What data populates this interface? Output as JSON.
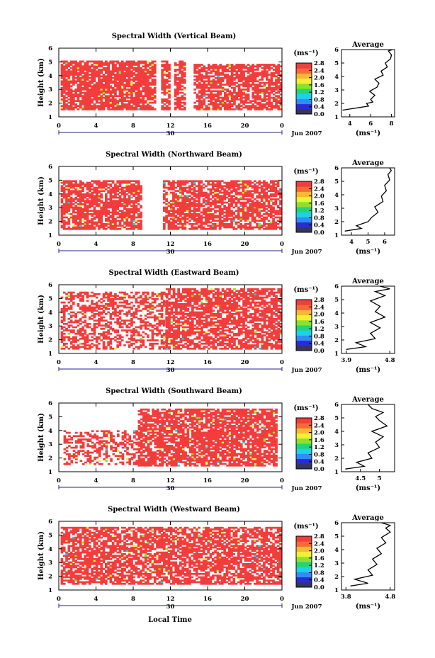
{
  "figure": {
    "xlabel": "Local Time",
    "date_label": "Jun 2007",
    "day_label": "30",
    "unit_label": "(ms⁻¹)",
    "avg_title": "Average",
    "colors": {
      "bar": [
        "#36365a",
        "#2b2bd6",
        "#2f8df6",
        "#1fd1e8",
        "#22d47a",
        "#8ce22a",
        "#f0f036",
        "#f7b834",
        "#f56b36",
        "#f23d3d"
      ],
      "fill": "#f23d3d"
    }
  },
  "chart_data": [
    {
      "type": "heatmap",
      "title": "Spectral Width (Vertical Beam)",
      "ylabel": "Height (km)",
      "x_ticks": [
        "0",
        "4",
        "8",
        "12",
        "16",
        "20",
        "0"
      ],
      "xlim": [
        0,
        24
      ],
      "y_ticks": [
        "1",
        "2",
        "3",
        "4",
        "5",
        "6"
      ],
      "ylim": [
        1,
        6
      ],
      "colorbar_ticks": [
        "0.0",
        "0.4",
        "0.8",
        "1.2",
        "1.6",
        "2.0",
        "2.4",
        "2.8"
      ],
      "clim": [
        0,
        2.8
      ],
      "data_ranges": [
        {
          "from": 0.2,
          "to": 10.3,
          "h_from": 1.5,
          "h_to": 5.0,
          "fill": 0.82
        },
        {
          "from": 11.0,
          "to": 11.8,
          "h_from": 1.5,
          "h_to": 5.0,
          "fill": 0.7
        },
        {
          "from": 12.4,
          "to": 13.6,
          "h_from": 1.5,
          "h_to": 5.0,
          "fill": 0.75
        },
        {
          "from": 14.5,
          "to": 23.8,
          "h_from": 1.5,
          "h_to": 4.8,
          "fill": 0.72
        }
      ],
      "average": {
        "x_ticks": [
          "4",
          "6",
          "8"
        ],
        "xlim": [
          3.2,
          8.3
        ],
        "x": [
          3.3,
          5.8,
          5.6,
          6.2,
          6.0,
          6.4,
          5.9,
          6.6,
          6.8,
          6.4,
          7.2,
          7.0,
          7.6,
          7.4,
          7.9,
          8.0,
          7.7,
          8.1
        ],
        "y": [
          1.5,
          1.8,
          2.0,
          2.1,
          2.3,
          2.6,
          2.9,
          3.2,
          3.5,
          3.8,
          4.1,
          4.4,
          4.7,
          5.0,
          5.3,
          5.6,
          5.9,
          6.0
        ]
      }
    },
    {
      "type": "heatmap",
      "title": "Spectral Width (Northward Beam)",
      "ylabel": "Height (km)",
      "x_ticks": [
        "0",
        "4",
        "8",
        "12",
        "16",
        "20",
        "0"
      ],
      "xlim": [
        0,
        24
      ],
      "y_ticks": [
        "1",
        "2",
        "3",
        "4",
        "5",
        "6"
      ],
      "ylim": [
        1,
        6
      ],
      "colorbar_ticks": [
        "0.0",
        "0.4",
        "0.8",
        "1.2",
        "1.6",
        "2.0",
        "2.4",
        "2.8"
      ],
      "clim": [
        0,
        2.8
      ],
      "data_ranges": [
        {
          "from": 0.2,
          "to": 8.8,
          "h_from": 1.4,
          "h_to": 5.0,
          "fill": 0.78
        },
        {
          "from": 11.2,
          "to": 23.8,
          "h_from": 1.4,
          "h_to": 5.0,
          "fill": 0.72
        }
      ],
      "average": {
        "x_ticks": [
          "4",
          "5",
          "6"
        ],
        "xlim": [
          3.4,
          6.6
        ],
        "x": [
          3.6,
          4.6,
          4.3,
          5.0,
          5.2,
          5.6,
          5.4,
          5.9,
          5.8,
          6.1,
          6.0,
          6.3,
          6.2,
          6.4,
          6.3
        ],
        "y": [
          1.3,
          1.5,
          1.7,
          2.0,
          2.3,
          2.7,
          3.1,
          3.5,
          3.9,
          4.3,
          4.7,
          5.1,
          5.5,
          5.8,
          6.0
        ]
      }
    },
    {
      "type": "heatmap",
      "title": "Spectral Width (Eastward Beam)",
      "ylabel": "Height (km)",
      "x_ticks": [
        "0",
        "4",
        "8",
        "12",
        "16",
        "20",
        "0"
      ],
      "xlim": [
        0,
        24
      ],
      "y_ticks": [
        "1",
        "2",
        "3",
        "4",
        "5",
        "6"
      ],
      "ylim": [
        1,
        6
      ],
      "colorbar_ticks": [
        "0.0",
        "0.4",
        "0.8",
        "1.2",
        "1.6",
        "2.0",
        "2.4",
        "2.8"
      ],
      "clim": [
        0,
        2.8
      ],
      "data_ranges": [
        {
          "from": 0.2,
          "to": 11.5,
          "h_from": 1.3,
          "h_to": 5.5,
          "fill": 0.5
        },
        {
          "from": 11.5,
          "to": 23.8,
          "h_from": 1.3,
          "h_to": 5.7,
          "fill": 0.72
        }
      ],
      "average": {
        "x_ticks": [
          "3.9",
          "4.8"
        ],
        "xlim": [
          3.8,
          4.9
        ],
        "x": [
          3.9,
          4.3,
          4.1,
          4.5,
          4.4,
          4.6,
          4.4,
          4.7,
          4.5,
          4.6,
          4.4,
          4.7,
          4.5,
          4.8,
          4.6
        ],
        "y": [
          1.3,
          1.5,
          1.8,
          2.1,
          2.5,
          2.9,
          3.3,
          3.7,
          4.1,
          4.5,
          4.9,
          5.3,
          5.6,
          5.8,
          6.0
        ]
      }
    },
    {
      "type": "heatmap",
      "title": "Spectral Width (Southward Beam)",
      "ylabel": "Height (km)",
      "x_ticks": [
        "0",
        "4",
        "8",
        "12",
        "16",
        "20",
        "0"
      ],
      "xlim": [
        0,
        24
      ],
      "y_ticks": [
        "1",
        "2",
        "3",
        "4",
        "5",
        "6"
      ],
      "ylim": [
        1,
        6
      ],
      "colorbar_ticks": [
        "0.0",
        "0.4",
        "0.8",
        "1.2",
        "1.6",
        "2.0",
        "2.4",
        "2.8"
      ],
      "clim": [
        0,
        2.8
      ],
      "data_ranges": [
        {
          "from": 0.5,
          "to": 8.5,
          "h_from": 1.5,
          "h_to": 4.0,
          "fill": 0.45
        },
        {
          "from": 8.5,
          "to": 23.5,
          "h_from": 1.4,
          "h_to": 5.5,
          "fill": 0.78
        }
      ],
      "average": {
        "x_ticks": [
          "4.5",
          "5"
        ],
        "xlim": [
          4.0,
          5.4
        ],
        "x": [
          4.1,
          4.6,
          4.4,
          4.8,
          4.7,
          5.0,
          4.9,
          5.1,
          4.8,
          5.2,
          5.0,
          4.9,
          5.1,
          4.8,
          4.7
        ],
        "y": [
          1.2,
          1.4,
          1.7,
          2.0,
          2.4,
          2.8,
          3.2,
          3.6,
          4.0,
          4.4,
          4.8,
          5.1,
          5.4,
          5.7,
          6.0
        ]
      }
    },
    {
      "type": "heatmap",
      "title": "Spectral Width (Westward Beam)",
      "ylabel": "Height (km)",
      "x_ticks": [
        "0",
        "4",
        "8",
        "12",
        "16",
        "20",
        "0"
      ],
      "xlim": [
        0,
        24
      ],
      "y_ticks": [
        "1",
        "2",
        "3",
        "4",
        "5",
        "6"
      ],
      "ylim": [
        1,
        6
      ],
      "colorbar_ticks": [
        "0.0",
        "0.4",
        "0.8",
        "1.2",
        "1.6",
        "2.0",
        "2.4",
        "2.8"
      ],
      "clim": [
        0,
        2.8
      ],
      "data_ranges": [
        {
          "from": 0.2,
          "to": 23.8,
          "h_from": 1.4,
          "h_to": 5.6,
          "fill": 0.7
        }
      ],
      "average": {
        "x_ticks": [
          "3.8",
          "4.8"
        ],
        "xlim": [
          3.7,
          4.9
        ],
        "x": [
          3.9,
          4.3,
          4.0,
          4.4,
          4.3,
          4.5,
          4.4,
          4.6,
          4.5,
          4.7,
          4.6,
          4.8,
          4.7,
          4.8,
          4.6
        ],
        "y": [
          1.3,
          1.5,
          1.8,
          2.1,
          2.5,
          2.9,
          3.3,
          3.7,
          4.1,
          4.5,
          4.9,
          5.3,
          5.6,
          5.8,
          6.0
        ]
      }
    }
  ]
}
